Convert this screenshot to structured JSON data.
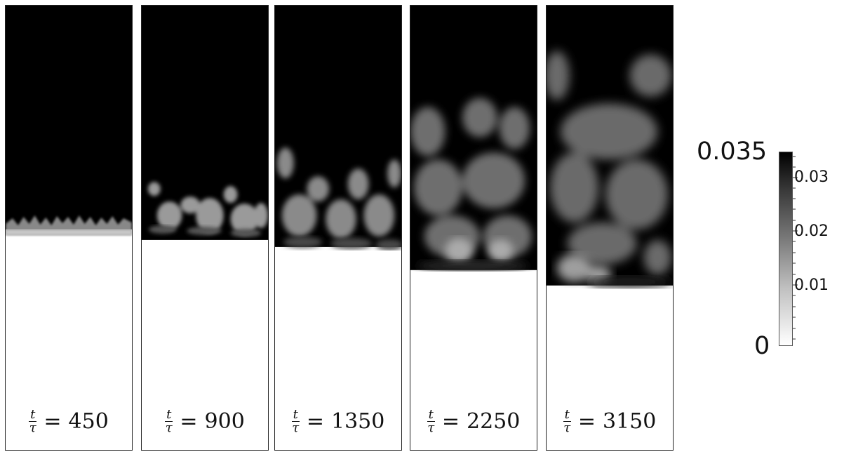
{
  "panels": [
    {
      "t_symbol": "t",
      "tau_symbol": "τ",
      "equals": "=",
      "value": "450"
    },
    {
      "t_symbol": "t",
      "tau_symbol": "τ",
      "equals": "=",
      "value": "900"
    },
    {
      "t_symbol": "t",
      "tau_symbol": "τ",
      "equals": "=",
      "value": "1350"
    },
    {
      "t_symbol": "t",
      "tau_symbol": "τ",
      "equals": "=",
      "value": "2250"
    },
    {
      "t_symbol": "t",
      "tau_symbol": "τ",
      "equals": "=",
      "value": "3150"
    }
  ],
  "colorbar": {
    "max_label": "0.035",
    "min_label": "0",
    "tick_labels": [
      "0.03",
      "0.02",
      "0.01"
    ],
    "colors": {
      "high": "#000000",
      "low": "#ffffff"
    }
  }
}
